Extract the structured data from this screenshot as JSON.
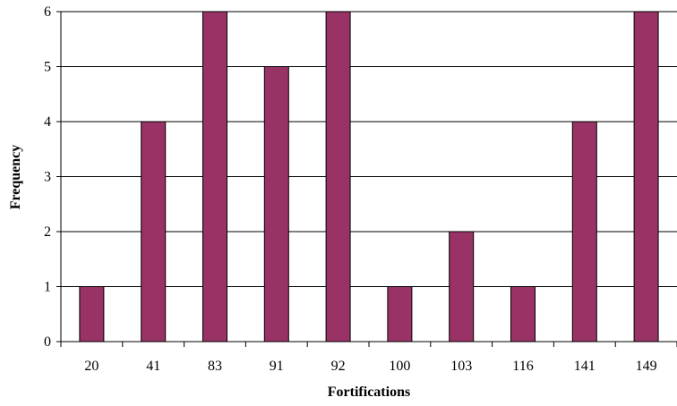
{
  "chart_data": {
    "type": "bar",
    "title": "",
    "xlabel": "Fortifications",
    "ylabel": "Frequency",
    "categories": [
      "20",
      "41",
      "83",
      "91",
      "92",
      "100",
      "103",
      "116",
      "141",
      "149"
    ],
    "values": [
      1,
      4,
      6,
      5,
      6,
      1,
      2,
      1,
      4,
      6
    ],
    "ylim": [
      0,
      6
    ],
    "yticks": [
      "0",
      "1",
      "2",
      "3",
      "4",
      "5",
      "6"
    ],
    "grid": true,
    "legend": "none",
    "bar_color": "#993366"
  }
}
